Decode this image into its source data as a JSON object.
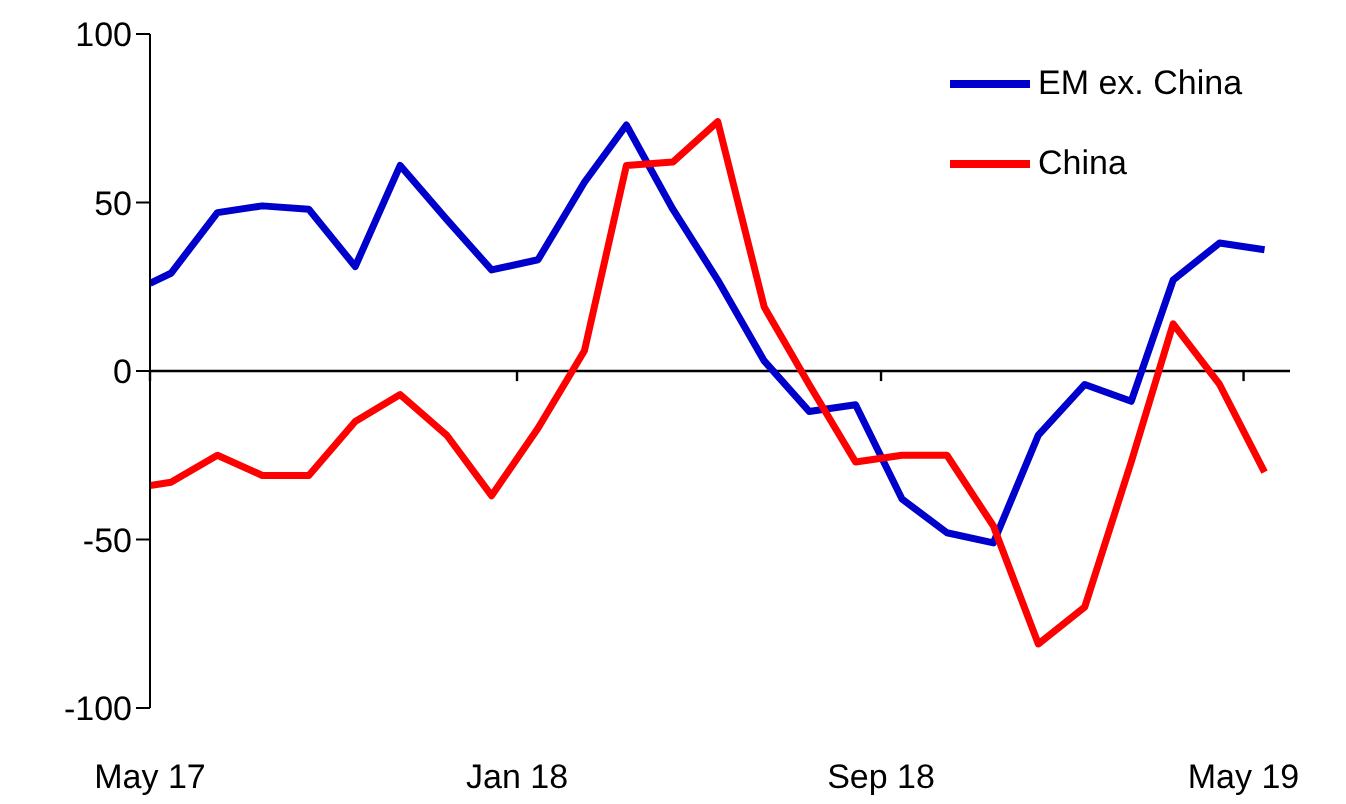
{
  "chart_data": {
    "type": "line",
    "x": [
      "2017-05-01",
      "2017-05-15",
      "2017-06-15",
      "2017-07-15",
      "2017-08-15",
      "2017-09-15",
      "2017-10-15",
      "2017-11-15",
      "2017-12-15",
      "2018-01-15",
      "2018-02-15",
      "2018-03-15",
      "2018-04-15",
      "2018-05-15",
      "2018-06-15",
      "2018-07-15",
      "2018-08-15",
      "2018-09-15",
      "2018-10-15",
      "2018-11-15",
      "2018-12-15",
      "2019-01-15",
      "2019-02-15",
      "2019-03-15",
      "2019-04-15",
      "2019-05-15"
    ],
    "series": [
      {
        "name": "EM ex. China",
        "color": "#0000cc",
        "values": [
          26,
          29,
          47,
          49,
          48,
          31,
          61,
          45,
          30,
          33,
          56,
          73,
          48,
          27,
          3,
          -12,
          -10,
          -38,
          -48,
          -51,
          -19,
          -4,
          -9,
          27,
          38,
          36
        ]
      },
      {
        "name": "China",
        "color": "#ff0000",
        "values": [
          -34,
          -33,
          -25,
          -31,
          -31,
          -15,
          -7,
          -19,
          -37,
          -17,
          6,
          61,
          62,
          74,
          19,
          -4,
          -27,
          -25,
          -25,
          -46,
          -81,
          -70,
          -27,
          14,
          -4,
          -30
        ]
      }
    ],
    "xlim": [
      "2017-05-01",
      "2019-06-01"
    ],
    "xticks": [
      {
        "value": "2017-05",
        "label": "May 17"
      },
      {
        "value": "2018-01",
        "label": "Jan 18"
      },
      {
        "value": "2018-09",
        "label": "Sep 18"
      },
      {
        "value": "2019-05",
        "label": "May 19"
      }
    ],
    "ylim": [
      -100,
      100
    ],
    "yticks": [
      -100,
      -50,
      0,
      50,
      100
    ],
    "ref_lines": [
      {
        "axis": "y",
        "value": 0,
        "color": "#000000"
      }
    ],
    "grid": false,
    "legend": "top right",
    "marker": "none",
    "line_style": "solid"
  }
}
